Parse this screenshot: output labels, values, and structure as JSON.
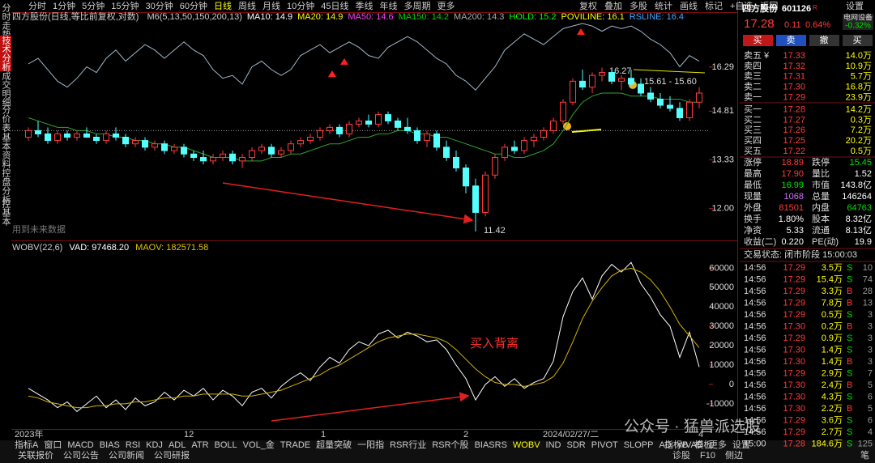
{
  "sidebar": [
    "分时走势",
    "技术分析",
    "成交明细",
    "分价表",
    "基本资料",
    "控盘分析",
    "控基本"
  ],
  "sidebar_active": "技术分析",
  "periods": [
    "分时",
    "1分钟",
    "5分钟",
    "15分钟",
    "30分钟",
    "60分钟",
    "日线",
    "周线",
    "月线",
    "10分钟",
    "45日线",
    "季线",
    "年线",
    "多周期",
    "更多"
  ],
  "period_active": "日线",
  "tools": [
    "复权",
    "叠加",
    "多股",
    "统计",
    "画线",
    "标记",
    "+自选",
    "返回"
  ],
  "chart_data": [
    {
      "type": "candlestick",
      "title": "四方股份(日线,等比前复权,对数)",
      "legend": [
        {
          "text": "M6(5,13,50,150,200,13)",
          "color": "#cccccc"
        },
        {
          "text": "MA10: 14.9",
          "color": "#ffffff"
        },
        {
          "text": "MA20: 14.9",
          "color": "#ffff00"
        },
        {
          "text": "MA50: 14.6",
          "color": "#ff40ff"
        },
        {
          "text": "MA150: 14.2",
          "color": "#00d000"
        },
        {
          "text": "MA200: 14.3",
          "color": "#aaaaaa"
        },
        {
          "text": "HOLD: 15.2",
          "color": "#00ff00"
        },
        {
          "text": "POVILINE: 16.1",
          "color": "#ffff00"
        },
        {
          "text": "RSLINE: 16.4",
          "color": "#40a8ff"
        }
      ],
      "log_scale": true,
      "ylim": [
        11.3,
        17.93
      ],
      "yticks": [
        {
          "value": 12,
          "label": "12.00"
        },
        13.33,
        14.81,
        16.29
      ],
      "up_color": "#ff3c3c",
      "down_color": "#54ffff",
      "candles": [
        [
          14.0,
          14.3,
          13.9,
          14.2
        ],
        [
          14.2,
          14.5,
          14.0,
          14.1
        ],
        [
          14.1,
          14.3,
          13.8,
          13.9
        ],
        [
          13.9,
          14.2,
          13.8,
          14.1
        ],
        [
          14.1,
          14.2,
          13.9,
          14.0
        ],
        [
          14.0,
          14.2,
          13.9,
          14.1
        ],
        [
          14.1,
          14.3,
          14.0,
          14.0
        ],
        [
          14.0,
          14.1,
          13.8,
          13.9
        ],
        [
          13.9,
          14.2,
          13.8,
          14.1
        ],
        [
          14.1,
          14.3,
          13.9,
          14.0
        ],
        [
          14.0,
          14.1,
          13.7,
          13.8
        ],
        [
          13.8,
          14.0,
          13.7,
          13.9
        ],
        [
          13.9,
          14.0,
          13.6,
          13.7
        ],
        [
          13.7,
          13.9,
          13.6,
          13.8
        ],
        [
          13.8,
          13.9,
          13.5,
          13.6
        ],
        [
          13.6,
          13.8,
          13.5,
          13.7
        ],
        [
          13.7,
          13.8,
          13.4,
          13.5
        ],
        [
          13.5,
          13.6,
          13.3,
          13.4
        ],
        [
          13.4,
          13.6,
          13.2,
          13.3
        ],
        [
          13.3,
          13.5,
          13.2,
          13.4
        ],
        [
          13.4,
          13.6,
          13.3,
          13.5
        ],
        [
          13.5,
          13.6,
          13.2,
          13.3
        ],
        [
          13.3,
          13.5,
          13.1,
          13.4
        ],
        [
          13.4,
          13.7,
          13.3,
          13.6
        ],
        [
          13.6,
          13.8,
          13.5,
          13.7
        ],
        [
          13.7,
          13.8,
          13.4,
          13.5
        ],
        [
          13.5,
          13.7,
          13.4,
          13.6
        ],
        [
          13.6,
          13.9,
          13.5,
          13.8
        ],
        [
          13.8,
          14.0,
          13.7,
          13.9
        ],
        [
          13.9,
          14.1,
          13.8,
          14.0
        ],
        [
          14.0,
          14.3,
          13.9,
          14.2
        ],
        [
          14.2,
          14.4,
          14.1,
          14.3
        ],
        [
          14.3,
          14.4,
          14.0,
          14.1
        ],
        [
          14.1,
          14.5,
          14.0,
          14.4
        ],
        [
          14.4,
          14.6,
          14.3,
          14.5
        ],
        [
          14.5,
          14.7,
          14.3,
          14.4
        ],
        [
          14.4,
          14.8,
          14.3,
          14.7
        ],
        [
          14.7,
          14.8,
          14.4,
          14.5
        ],
        [
          14.5,
          14.6,
          14.2,
          14.3
        ],
        [
          14.3,
          14.6,
          14.1,
          14.2
        ],
        [
          14.2,
          14.3,
          13.8,
          13.9
        ],
        [
          13.9,
          14.2,
          13.7,
          14.1
        ],
        [
          14.1,
          14.2,
          13.6,
          13.7
        ],
        [
          13.7,
          13.9,
          13.3,
          13.4
        ],
        [
          13.4,
          13.6,
          13.0,
          13.1
        ],
        [
          13.1,
          13.2,
          12.4,
          12.6
        ],
        [
          12.6,
          12.8,
          11.42,
          11.9
        ],
        [
          11.9,
          13.0,
          11.8,
          12.9
        ],
        [
          12.9,
          13.5,
          12.8,
          13.4
        ],
        [
          13.4,
          13.8,
          13.3,
          13.7
        ],
        [
          13.7,
          13.9,
          13.5,
          13.6
        ],
        [
          13.6,
          14.0,
          13.5,
          13.9
        ],
        [
          13.9,
          14.1,
          13.7,
          14.0
        ],
        [
          14.0,
          14.3,
          13.9,
          14.2
        ],
        [
          14.2,
          14.6,
          14.1,
          14.5
        ],
        [
          14.5,
          15.2,
          14.4,
          15.1
        ],
        [
          15.1,
          15.9,
          15.0,
          15.8
        ],
        [
          15.8,
          16.2,
          15.5,
          15.6
        ],
        [
          15.6,
          16.1,
          15.4,
          16.0
        ],
        [
          16.0,
          16.27,
          15.8,
          16.1
        ],
        [
          16.1,
          16.2,
          15.7,
          15.8
        ],
        [
          15.8,
          16.0,
          15.5,
          15.9
        ],
        [
          15.9,
          16.2,
          15.6,
          15.7
        ],
        [
          15.7,
          15.9,
          15.3,
          15.4
        ],
        [
          15.4,
          15.6,
          15.1,
          15.2
        ],
        [
          15.2,
          15.4,
          14.9,
          15.0
        ],
        [
          15.0,
          15.3,
          14.8,
          14.9
        ],
        [
          14.9,
          15.1,
          14.5,
          14.6
        ],
        [
          14.6,
          15.2,
          14.5,
          15.1
        ],
        [
          15.1,
          15.6,
          14.9,
          15.4
        ]
      ],
      "overlays": [
        {
          "color": "#9fb8c8",
          "values": [
            16.4,
            16.6,
            16.2,
            15.8,
            15.6,
            15.9,
            16.3,
            16.1,
            16.6,
            16.9,
            16.5,
            16.8,
            17.1,
            16.9,
            16.6,
            16.9,
            17.2,
            16.9,
            16.7,
            16.2,
            15.9,
            16.0,
            15.7,
            16.3,
            16.5,
            16.2,
            16.0,
            16.2,
            16.7,
            16.9,
            17.1,
            16.8,
            17.0,
            17.2,
            17.0,
            16.7,
            16.6,
            17.0,
            17.2,
            17.4,
            17.2,
            16.9,
            16.6,
            16.4,
            16.0,
            15.8,
            15.5,
            15.9,
            16.3,
            16.9,
            17.2,
            17.5,
            17.3,
            17.1,
            17.4,
            17.7,
            17.8,
            17.9,
            17.8,
            17.6,
            17.8,
            17.7,
            17.8,
            17.6,
            17.3,
            17.1,
            16.8,
            16.3,
            16.7,
            16.5
          ]
        },
        {
          "color": "#2fa32f",
          "values": [
            14.6,
            14.5,
            14.4,
            14.3,
            14.3,
            14.2,
            14.2,
            14.1,
            14.1,
            14.0,
            14.0,
            13.9,
            13.9,
            13.8,
            13.8,
            13.7,
            13.7,
            13.6,
            13.5,
            13.4,
            13.4,
            13.4,
            13.3,
            13.3,
            13.3,
            13.4,
            13.4,
            13.5,
            13.5,
            13.6,
            13.7,
            13.8,
            13.8,
            13.9,
            14.0,
            14.0,
            14.1,
            14.1,
            14.2,
            14.2,
            14.1,
            14.1,
            14.0,
            14.0,
            13.9,
            13.8,
            13.7,
            13.6,
            13.5,
            13.5,
            13.4,
            13.4,
            13.5,
            13.6,
            13.8,
            14.2,
            14.7,
            15.1,
            15.3,
            15.4,
            15.4,
            15.4,
            15.3,
            15.3,
            15.3,
            15.2,
            15.2,
            15.2,
            15.1,
            15.1
          ]
        }
      ],
      "ref_line": 14.2,
      "annotations": [
        "16.27",
        "15.61 - 15.60",
        "11.42"
      ],
      "note": "用到未来数据"
    },
    {
      "type": "line",
      "title": "WOBV(22,6)",
      "legend": [
        {
          "text": "VAD: 97468.20",
          "color": "#ffffff"
        },
        {
          "text": "MAOV: 182571.58",
          "color": "#e0c000"
        }
      ],
      "ylim": [
        -18000,
        66000
      ],
      "yticks": [
        60000,
        50000,
        40000,
        30000,
        20000,
        10000,
        0,
        -10000
      ],
      "series": [
        {
          "color": "#ffffff",
          "values": [
            -2000,
            -5000,
            -8000,
            -12000,
            -9000,
            -14000,
            -10000,
            -6000,
            -12000,
            -8000,
            -13000,
            -7000,
            -11000,
            -9000,
            -4000,
            -8000,
            -3000,
            -6000,
            -2000,
            -8000,
            -3000,
            -6000,
            -11000,
            -4000,
            -2000,
            -7000,
            -1000,
            3000,
            6000,
            2000,
            9000,
            14000,
            11000,
            18000,
            22000,
            20000,
            26000,
            28000,
            24000,
            27000,
            25000,
            22000,
            23000,
            18000,
            10000,
            3000,
            -8000,
            0,
            4000,
            -1000,
            3000,
            -2000,
            1000,
            3000,
            12000,
            35000,
            48000,
            55000,
            44000,
            56000,
            62000,
            58000,
            63000,
            52000,
            45000,
            36000,
            30000,
            14000,
            27000,
            9000
          ]
        },
        {
          "color": "#d4b400",
          "values": [
            -6000,
            -7000,
            -9000,
            -10000,
            -11000,
            -12000,
            -12000,
            -11000,
            -11000,
            -10000,
            -10000,
            -9000,
            -9000,
            -8000,
            -7000,
            -7000,
            -6000,
            -6000,
            -5000,
            -5000,
            -5000,
            -5000,
            -6000,
            -6000,
            -5000,
            -4000,
            -3000,
            -1000,
            1000,
            3000,
            5000,
            8000,
            10000,
            13000,
            16000,
            19000,
            22000,
            24000,
            25000,
            26000,
            26000,
            25000,
            24000,
            22000,
            18000,
            13000,
            8000,
            4000,
            1000,
            0,
            0,
            -1000,
            0,
            1000,
            4000,
            11000,
            22000,
            34000,
            43000,
            50000,
            56000,
            59000,
            60000,
            58000,
            54000,
            48000,
            40000,
            31000,
            25000,
            19000
          ]
        }
      ],
      "callout": "买入背离"
    }
  ],
  "xlabels": [
    "2023年",
    "12",
    "1",
    "2",
    "2024/02/27/二",
    "4"
  ],
  "tabs": [
    "指标A",
    "窗口",
    "MACD",
    "BIAS",
    "RSI",
    "KDJ",
    "ADL",
    "ATR",
    "BOLL",
    "VOL_金",
    "TRADE",
    "超量突破",
    "一阳指",
    "RSR行业",
    "RSR个股",
    "BIASRS",
    "WOBV",
    "IND",
    "SDR",
    "PIVOT",
    "SLOPP",
    "AD",
    "WVAD",
    "更多",
    "设置"
  ],
  "tab_active": "WOBV",
  "tabs_right": [
    "指标B",
    "模板"
  ],
  "footer": [
    "关联报价",
    "公司公告",
    "公司新闻",
    "公司研报"
  ],
  "footer_right": [
    "诊股",
    "F10",
    "侧边"
  ],
  "quote": {
    "name": "四方股份",
    "code": "601126",
    "badge": "R",
    "sector": "电网设备",
    "settings": "设置",
    "price": "17.28",
    "change": "0.11",
    "pct": "0.64%",
    "sector_pct": "-0.32%"
  },
  "actions": [
    "买",
    "卖",
    "撤",
    "买"
  ],
  "book": [
    [
      "卖五 ¥",
      "17.33",
      "14.0万"
    ],
    [
      "卖四",
      "17.32",
      "10.9万"
    ],
    [
      "卖三",
      "17.31",
      "5.7万"
    ],
    [
      "卖二",
      "17.30",
      "16.8万"
    ],
    [
      "卖一",
      "17.29",
      "23.9万"
    ],
    [
      "买一",
      "17.28",
      "14.2万"
    ],
    [
      "买二",
      "17.27",
      "0.3万"
    ],
    [
      "买三",
      "17.26",
      "7.2万"
    ],
    [
      "买四",
      "17.25",
      "20.2万"
    ],
    [
      "买五",
      "17.22",
      "0.5万"
    ]
  ],
  "stats": [
    [
      "涨停",
      "18.89",
      "跌停",
      "15.45"
    ],
    [
      "最高",
      "17.90",
      "量比",
      "1.52"
    ],
    [
      "最低",
      "16.99",
      "市值",
      "143.8亿"
    ],
    [
      "现量",
      "1068",
      "总量",
      "146264"
    ],
    [
      "外盘",
      "81501",
      "内盘",
      "64763"
    ],
    [
      "换手",
      "1.80%",
      "股本",
      "8.32亿"
    ],
    [
      "净资",
      "5.33",
      "流通",
      "8.13亿"
    ],
    [
      "收益(二)",
      "0.220",
      "PE(动)",
      "19.9"
    ]
  ],
  "stat_colors": [
    [
      "#ff3c3c",
      "#00e000"
    ],
    [
      "#ff3c3c",
      "#ffffff"
    ],
    [
      "#00e000",
      "#ffffff"
    ],
    [
      "#d070ff",
      "#ffffff"
    ],
    [
      "#ff3c3c",
      "#00e000"
    ],
    [
      "#ffffff",
      "#ffffff"
    ],
    [
      "#ffffff",
      "#ffffff"
    ],
    [
      "#ffffff",
      "#ffffff"
    ]
  ],
  "status": "交易状态: 闭市阶段 15:00:03",
  "trades": [
    [
      "14:56",
      "17.29",
      "3.5万",
      "S",
      "10"
    ],
    [
      "14:56",
      "17.29",
      "15.4万",
      "S",
      "74"
    ],
    [
      "14:56",
      "17.29",
      "3.3万",
      "B",
      "28"
    ],
    [
      "14:56",
      "17.29",
      "7.8万",
      "B",
      "13"
    ],
    [
      "14:56",
      "17.29",
      "0.5万",
      "S",
      "3"
    ],
    [
      "14:56",
      "17.30",
      "0.2万",
      "B",
      "3"
    ],
    [
      "14:56",
      "17.29",
      "0.9万",
      "S",
      "3"
    ],
    [
      "14:56",
      "17.30",
      "1.4万",
      "S",
      "3"
    ],
    [
      "14:56",
      "17.30",
      "1.4万",
      "B",
      "3"
    ],
    [
      "14:56",
      "17.29",
      "2.9万",
      "S",
      "7"
    ],
    [
      "14:56",
      "17.30",
      "2.4万",
      "B",
      "5"
    ],
    [
      "14:56",
      "17.30",
      "4.3万",
      "S",
      "6"
    ],
    [
      "14:56",
      "17.30",
      "2.2万",
      "B",
      "5"
    ],
    [
      "14:56",
      "17.29",
      "3.6万",
      "S",
      "6"
    ],
    [
      "14:56",
      "17.29",
      "2.7万",
      "S",
      "4"
    ],
    [
      "15:00",
      "17.28",
      "184.6万",
      "S",
      "125"
    ]
  ],
  "watermark": "公众号 · 猛兽派选股",
  "pen": "笔"
}
